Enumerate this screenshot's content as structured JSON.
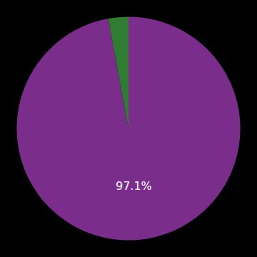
{
  "chart_data": {
    "type": "pie",
    "values": [
      97.1,
      2.9
    ],
    "value_labels": [
      "97.1%",
      null
    ],
    "colors": [
      "#7b2d8b",
      "#2e7d32"
    ]
  }
}
